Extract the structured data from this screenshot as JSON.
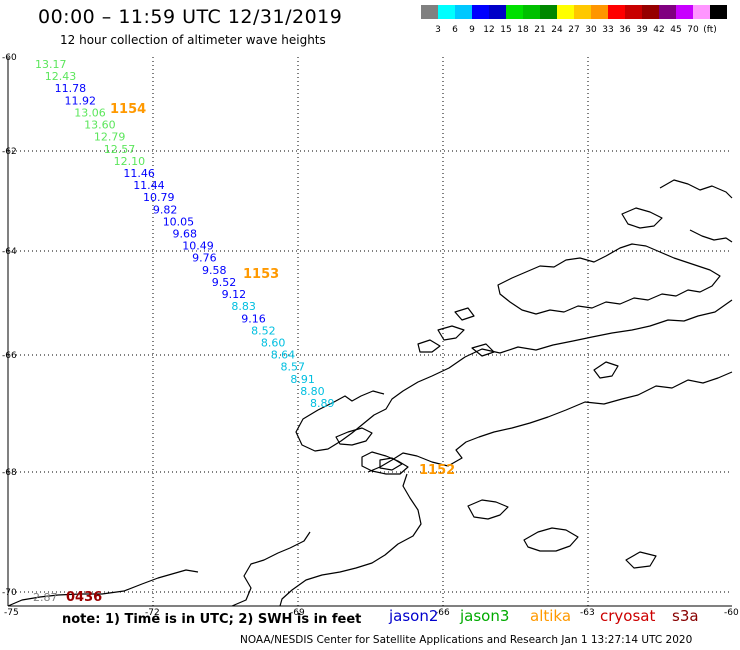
{
  "header": {
    "title": "00:00 – 11:59 UTC 12/31/2019",
    "subtitle": "12 hour collection of altimeter wave heights"
  },
  "color_scale": {
    "colors": [
      "#808080",
      "#00ffff",
      "#00c8ff",
      "#0000ff",
      "#0000c8",
      "#00e000",
      "#00c000",
      "#008800",
      "#ffff00",
      "#ffc800",
      "#ff9600",
      "#ff0000",
      "#c80000",
      "#960000",
      "#800080",
      "#c800ff",
      "#ff96ff",
      "#000000"
    ],
    "labels": [
      "3",
      "6",
      "9",
      "12",
      "15",
      "18",
      "21",
      "24",
      "27",
      "30",
      "33",
      "36",
      "39",
      "42",
      "45",
      "70",
      "(ft)"
    ]
  },
  "map": {
    "lat_labels": [
      "-60",
      "-62",
      "-64",
      "-66",
      "-68",
      "-70"
    ],
    "lon_labels": [
      "-75",
      "-72",
      "-69",
      "-66",
      "-63",
      "-60"
    ],
    "track_times": [
      "1154",
      "1153",
      "1152",
      "0436"
    ],
    "wave_heights": [
      {
        "v": "13.17",
        "c": "#5ce65c"
      },
      {
        "v": "12.43",
        "c": "#5ce65c"
      },
      {
        "v": "11.78",
        "c": "#0000ff"
      },
      {
        "v": "11.92",
        "c": "#0000ff"
      },
      {
        "v": "13.06",
        "c": "#5ce65c"
      },
      {
        "v": "13.60",
        "c": "#5ce65c"
      },
      {
        "v": "12.79",
        "c": "#5ce65c"
      },
      {
        "v": "12.57",
        "c": "#5ce65c"
      },
      {
        "v": "12.10",
        "c": "#5ce65c"
      },
      {
        "v": "11.46",
        "c": "#0000ff"
      },
      {
        "v": "11.44",
        "c": "#0000ff"
      },
      {
        "v": "10.79",
        "c": "#0000ff"
      },
      {
        "v": "9.82",
        "c": "#0000ff"
      },
      {
        "v": "10.05",
        "c": "#0000ff"
      },
      {
        "v": "9.68",
        "c": "#0000ff"
      },
      {
        "v": "10.49",
        "c": "#0000ff"
      },
      {
        "v": "9.76",
        "c": "#0000ff"
      },
      {
        "v": "9.58",
        "c": "#0000ff"
      },
      {
        "v": "9.52",
        "c": "#0000ff"
      },
      {
        "v": "9.12",
        "c": "#0000ff"
      },
      {
        "v": "8.83",
        "c": "#00bfe0"
      },
      {
        "v": "9.16",
        "c": "#0000ff"
      },
      {
        "v": "8.52",
        "c": "#00bfe0"
      },
      {
        "v": "8.60",
        "c": "#00bfe0"
      },
      {
        "v": "8.64",
        "c": "#00bfe0"
      },
      {
        "v": "8.57",
        "c": "#00bfe0"
      },
      {
        "v": "8.91",
        "c": "#00bfe0"
      },
      {
        "v": "8.80",
        "c": "#00bfe0"
      },
      {
        "v": "8.89",
        "c": "#00bfe0"
      },
      {
        "v": "2.87",
        "c": "#808080"
      }
    ]
  },
  "footer": {
    "note": "note: 1) Time is in UTC; 2) SWH is in feet",
    "credit": "NOAA/NESDIS Center for Satellite Applications and Research   Jan  1 13:27:14 UTC 2020",
    "missions": [
      {
        "name": "jason2",
        "color": "#0000cc"
      },
      {
        "name": "jason3",
        "color": "#00aa00"
      },
      {
        "name": "altika",
        "color": "#ff9900"
      },
      {
        "name": "cryosat",
        "color": "#cc0000"
      },
      {
        "name": "s3a",
        "color": "#880000"
      }
    ]
  }
}
